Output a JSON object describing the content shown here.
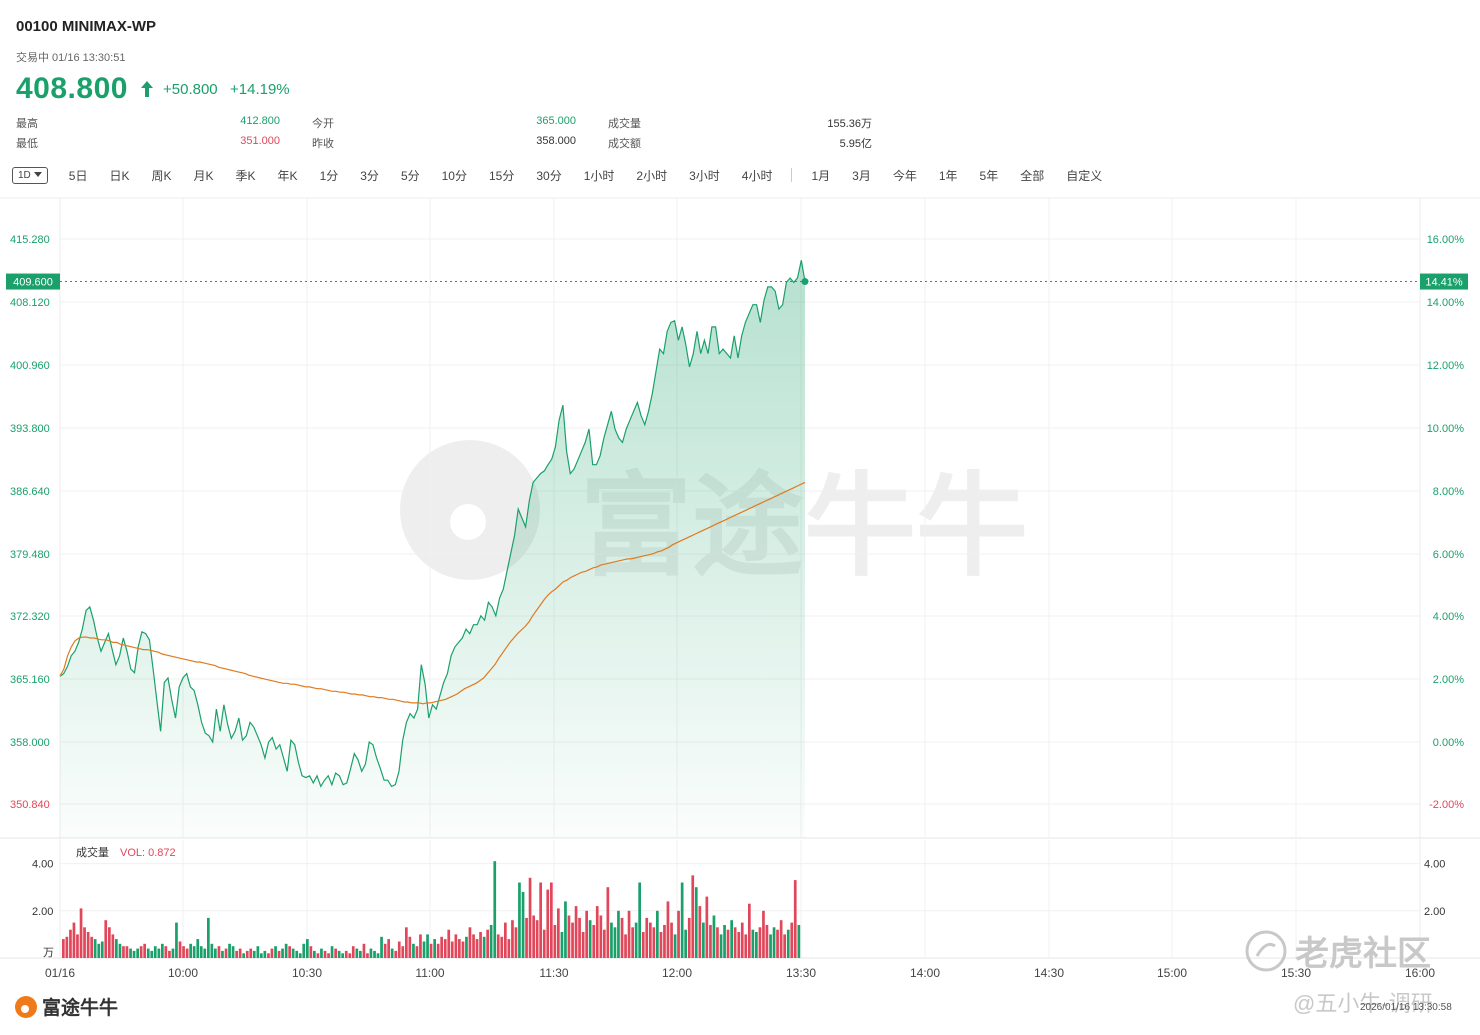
{
  "header": {
    "title": "00100  MINIMAX-WP",
    "status": "交易中 01/16 13:30:51",
    "price": "408.800",
    "change": "+50.800",
    "change_pct": "+14.19%"
  },
  "stats": {
    "high_label": "最高",
    "high": "412.800",
    "low_label": "最低",
    "low": "351.000",
    "open_label": "今开",
    "open": "365.000",
    "prev_close_label": "昨收",
    "prev_close": "358.000",
    "volume_label": "成交量",
    "volume": "155.36万",
    "turnover_label": "成交额",
    "turnover": "5.95亿"
  },
  "tabs": {
    "selected": "1D",
    "items": [
      "5日",
      "日K",
      "周K",
      "月K",
      "季K",
      "年K",
      "1分",
      "3分",
      "5分",
      "10分",
      "15分",
      "30分",
      "1小时",
      "2小时",
      "3小时",
      "4小时"
    ],
    "items2": [
      "1月",
      "3月",
      "今年",
      "1年",
      "5年",
      "全部",
      "自定义"
    ]
  },
  "chart_data": {
    "type": "line",
    "y_left_ticks": [
      "415.280",
      "408.120",
      "400.960",
      "393.800",
      "386.640",
      "379.480",
      "372.320",
      "365.160",
      "358.000",
      "350.840"
    ],
    "y_right_ticks": [
      "16.00%",
      "14.00%",
      "12.00%",
      "10.00%",
      "8.00%",
      "6.00%",
      "4.00%",
      "2.00%",
      "0.00%",
      "-2.00%"
    ],
    "x_ticks": [
      "01/16",
      "10:00",
      "10:30",
      "11:00",
      "11:30",
      "12:00",
      "13:30",
      "14:00",
      "14:30",
      "15:00",
      "15:30",
      "16:00"
    ],
    "ylim": [
      347.0,
      419.0
    ],
    "current_price_label": "409.600",
    "current_pct_label": "14.41%",
    "current_price": 409.6,
    "prev_close": 358.0,
    "colors": {
      "price": "#1aa06b",
      "avg": "#e07a1f",
      "up": "#e0475a",
      "down": "#1aa06b"
    },
    "series": [
      {
        "values": [
          365.2,
          365.5,
          366.3,
          367.5,
          368.0,
          369.0,
          370.5,
          372.6,
          373.0,
          371.5,
          369.5,
          368.0,
          369.0,
          370.0,
          368.2,
          366.5,
          367.5,
          369.5,
          368.0,
          366.0,
          365.6,
          368.5,
          370.2,
          370.0,
          369.3,
          366.0,
          362.5,
          359.0,
          364.5,
          365.0,
          362.5,
          360.5,
          364.0,
          365.0,
          365.5,
          364.0,
          363.6,
          362.0,
          360.0,
          358.8,
          358.5,
          357.8,
          361.5,
          359.0,
          362.0,
          359.8,
          358.2,
          359.0,
          360.5,
          358.0,
          358.5,
          360.0,
          359.5,
          358.5,
          357.5,
          356.0,
          357.8,
          358.3,
          357.0,
          357.5,
          356.0,
          354.5,
          358.0,
          357.5,
          355.5,
          354.0,
          353.8,
          354.0,
          353.2,
          354.0,
          352.8,
          353.5,
          354.0,
          353.0,
          354.3,
          354.0,
          353.0,
          353.2,
          354.8,
          356.5,
          355.8,
          354.5,
          355.3,
          357.8,
          357.5,
          356.0,
          354.8,
          353.5,
          353.5,
          352.8,
          353.0,
          354.5,
          358.0,
          360.0,
          361.0,
          360.5,
          361.5,
          366.5,
          364.3,
          360.5,
          362.0,
          361.5,
          363.0,
          364.5,
          365.5,
          367.5,
          368.5,
          369.0,
          369.5,
          370.5,
          370.0,
          371.0,
          371.0,
          372.0,
          371.5,
          373.5,
          373.0,
          372.0,
          374.0,
          375.0,
          377.0,
          379.0,
          381.0,
          384.0,
          383.0,
          382.0,
          385.0,
          387.0,
          387.5,
          388.0,
          388.3,
          389.0,
          389.6,
          391.0,
          394.0,
          395.7,
          390.5,
          388.0,
          388.5,
          389.5,
          390.5,
          391.5,
          393.0,
          389.0,
          389.0,
          390.0,
          392.0,
          393.5,
          395.0,
          393.0,
          392.0,
          391.5,
          393.0,
          394.0,
          395.0,
          396.0,
          394.5,
          393.5,
          395.0,
          397.0,
          399.5,
          402.0,
          401.5,
          404.0,
          405.0,
          405.2,
          403.0,
          404.5,
          402.5,
          400.0,
          401.5,
          404.0,
          401.5,
          403.0,
          401.5,
          404.5,
          404.5,
          401.5,
          402.0,
          401.5,
          401.0,
          403.5,
          401.0,
          403.5,
          405.0,
          406.0,
          407.0,
          407.0,
          405.0,
          407.5,
          409.0,
          409.0,
          408.5,
          406.5,
          407.0,
          409.5,
          410.0,
          409.5,
          410.0,
          412.0,
          409.6
        ]
      },
      {
        "values": [
          365.2,
          366.0,
          367.5,
          368.5,
          369.2,
          369.5,
          369.6,
          369.6,
          369.5,
          369.5,
          369.4,
          369.3,
          369.3,
          369.2,
          369.0,
          369.0,
          368.8,
          368.7,
          368.6,
          368.5,
          368.4,
          368.3,
          368.2,
          368.2,
          368.1,
          368.0,
          367.9,
          367.7,
          367.6,
          367.5,
          367.4,
          367.3,
          367.2,
          367.1,
          367.0,
          366.9,
          366.8,
          366.8,
          366.7,
          366.6,
          366.5,
          366.4,
          366.2,
          366.1,
          366.0,
          365.9,
          365.8,
          365.7,
          365.6,
          365.5,
          365.3,
          365.2,
          365.1,
          365.0,
          364.9,
          364.8,
          364.7,
          364.6,
          364.5,
          364.4,
          364.4,
          364.3,
          364.3,
          364.2,
          364.1,
          364.0,
          364.0,
          363.9,
          363.8,
          363.8,
          363.7,
          363.6,
          363.5,
          363.5,
          363.4,
          363.4,
          363.3,
          363.2,
          363.2,
          363.1,
          363.1,
          363.0,
          362.9,
          362.9,
          362.8,
          362.8,
          362.7,
          362.6,
          362.6,
          362.5,
          362.4,
          362.3,
          362.3,
          362.2,
          362.2,
          362.2,
          362.1,
          362.2,
          362.2,
          362.3,
          362.4,
          362.5,
          362.6,
          362.8,
          363.0,
          363.2,
          363.5,
          363.8,
          364.0,
          364.2,
          364.4,
          364.7,
          365.0,
          365.5,
          366.0,
          366.5,
          367.2,
          367.8,
          368.4,
          369.0,
          369.5,
          370.0,
          370.4,
          370.8,
          371.3,
          372.0,
          372.6,
          373.2,
          373.8,
          374.3,
          374.7,
          375.0,
          375.4,
          375.8,
          376.0,
          376.3,
          376.5,
          376.7,
          376.9,
          377.0,
          377.2,
          377.4,
          377.5,
          377.7,
          377.8,
          377.9,
          378.0,
          378.1,
          378.2,
          378.3,
          378.4,
          378.4,
          378.5,
          378.6,
          378.7,
          378.8,
          378.9,
          379.0,
          379.2,
          379.3,
          379.5,
          379.7,
          380.0,
          380.2,
          380.4,
          380.6,
          380.8,
          381.0,
          381.2,
          381.4,
          381.6,
          381.8,
          382.0,
          382.2,
          382.4,
          382.6,
          382.8,
          383.0,
          383.2,
          383.4,
          383.6,
          383.8,
          384.0,
          384.2,
          384.4,
          384.6,
          384.8,
          385.0,
          385.2,
          385.4,
          385.6,
          385.8,
          386.0,
          386.2,
          386.4,
          386.6,
          386.8,
          387.0
        ]
      }
    ],
    "volume": {
      "label": "成交量",
      "vol_label": "VOL: 0.872",
      "y_ticks": [
        "4.00",
        "2.00"
      ],
      "unit": "万",
      "ylim": [
        0,
        5.0
      ],
      "values": [
        0.8,
        0.9,
        1.2,
        1.5,
        1.0,
        2.1,
        1.3,
        1.1,
        0.9,
        0.8,
        0.6,
        0.7,
        1.6,
        1.3,
        1.0,
        0.8,
        0.6,
        0.5,
        0.5,
        0.4,
        0.3,
        0.4,
        0.5,
        0.6,
        0.4,
        0.3,
        0.5,
        0.4,
        0.6,
        0.5,
        0.3,
        0.4,
        1.5,
        0.7,
        0.5,
        0.4,
        0.6,
        0.5,
        0.8,
        0.5,
        0.4,
        1.7,
        0.6,
        0.4,
        0.5,
        0.3,
        0.4,
        0.6,
        0.5,
        0.3,
        0.4,
        0.2,
        0.3,
        0.4,
        0.3,
        0.5,
        0.2,
        0.3,
        0.2,
        0.4,
        0.5,
        0.3,
        0.4,
        0.6,
        0.5,
        0.4,
        0.3,
        0.2,
        0.6,
        0.8,
        0.5,
        0.3,
        0.2,
        0.4,
        0.3,
        0.2,
        0.5,
        0.4,
        0.3,
        0.2,
        0.3,
        0.2,
        0.5,
        0.4,
        0.3,
        0.6,
        0.2,
        0.4,
        0.3,
        0.2,
        0.9,
        0.6,
        0.8,
        0.4,
        0.3,
        0.7,
        0.5,
        1.3,
        0.9,
        0.6,
        0.5,
        1.0,
        0.7,
        1.0,
        0.6,
        0.8,
        0.6,
        0.9,
        0.8,
        1.2,
        0.7,
        1.0,
        0.8,
        0.7,
        0.9,
        1.3,
        1.0,
        0.8,
        1.1,
        0.9,
        1.2,
        1.4,
        4.1,
        1.0,
        0.9,
        1.5,
        0.8,
        1.6,
        1.3,
        3.2,
        2.8,
        1.7,
        3.4,
        1.8,
        1.6,
        3.2,
        1.2,
        2.9,
        3.2,
        1.4,
        2.1,
        1.1,
        2.4,
        1.8,
        1.5,
        2.2,
        1.7,
        1.1,
        2.0,
        1.6,
        1.4,
        2.2,
        1.8,
        1.2,
        3.0,
        1.5,
        1.3,
        2.0,
        1.7,
        1.0,
        2.0,
        1.3,
        1.5,
        3.2,
        1.1,
        1.7,
        1.5,
        1.3,
        2.0,
        1.1,
        1.4,
        2.4,
        1.5,
        1.0,
        2.0,
        3.2,
        1.2,
        1.7,
        3.5,
        3.0,
        2.2,
        1.5,
        2.6,
        1.4,
        1.8,
        1.3,
        1.0,
        1.4,
        1.2,
        1.6,
        1.3,
        1.1,
        1.5,
        1.0,
        2.3,
        1.2,
        1.1,
        1.3,
        2.0,
        1.4,
        1.0,
        1.3,
        1.2,
        1.6,
        1.0,
        1.2,
        1.5,
        3.3,
        1.4
      ]
    }
  },
  "footer": {
    "logo_text": "富途牛牛",
    "watermark": "富途牛牛",
    "watermark2": "老虎社区",
    "watermark3": "@五小牛-调研",
    "timestamp": "2026/01/16 13:30:58"
  }
}
